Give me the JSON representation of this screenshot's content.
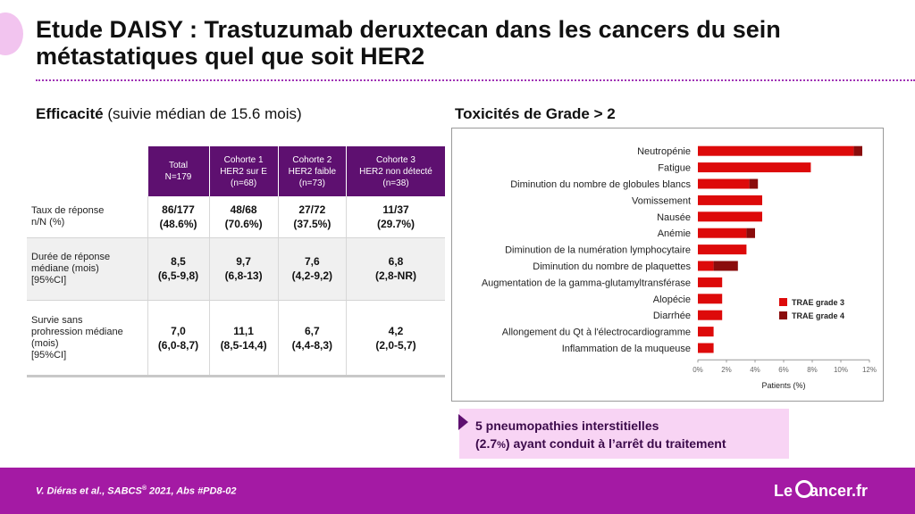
{
  "title": "Etude DAISY : Trastuzumab deruxtecan dans les cancers du sein métastatiques quel que soit HER2",
  "efficacy": {
    "heading_bold": "Efficacité",
    "heading_rest": "(suivie médian de 15.6 mois)",
    "columns": [
      {
        "line1": "Total",
        "line2": "N=179",
        "line3": ""
      },
      {
        "line1": "Cohorte 1",
        "line2": "HER2 sur E",
        "line3": "(n=68)"
      },
      {
        "line1": "Cohorte 2",
        "line2": "HER2 faible",
        "line3": "(n=73)"
      },
      {
        "line1": "Cohorte 3",
        "line2": "HER2 non détecté",
        "line3": "(n=38)"
      }
    ],
    "rows": [
      {
        "label": [
          "Taux de réponse",
          "n/N (%)"
        ],
        "values": [
          {
            "a": "86/177",
            "b": "(48.6%)"
          },
          {
            "a": "48/68",
            "b": "(70.6%)"
          },
          {
            "a": "27/72",
            "b": "(37.5%)"
          },
          {
            "a": "11/37",
            "b": "(29.7%)"
          }
        ]
      },
      {
        "label": [
          "Durée de réponse",
          "médiane (mois)",
          "[95%CI]"
        ],
        "values": [
          {
            "a": "8,5",
            "b": "(6,5-9,8)"
          },
          {
            "a": "9,7",
            "b": "(6,8-13)"
          },
          {
            "a": "7,6",
            "b": "(4,2-9,2)"
          },
          {
            "a": "6,8",
            "b": "(2,8-NR)"
          }
        ]
      },
      {
        "label": [
          "Survie sans",
          "prohression médiane",
          "(mois)",
          "[95%CI]"
        ],
        "values": [
          {
            "a": "7,0",
            "b": "(6,0-8,7)"
          },
          {
            "a": "11,1",
            "b": "(8,5-14,4)"
          },
          {
            "a": "6,7",
            "b": "(4,4-8,3)"
          },
          {
            "a": "4,2",
            "b": "(2,0-5,7)"
          }
        ]
      }
    ]
  },
  "toxicity": {
    "heading": "Toxicités de Grade > 2"
  },
  "chart_data": {
    "type": "bar",
    "orientation": "horizontal",
    "stacked": true,
    "categories": [
      "Neutropénie",
      "Fatigue",
      "Diminution du nombre de globules blancs",
      "Vomissement",
      "Nausée",
      "Anémie",
      "Diminution de la numération lymphocytaire",
      "Diminution du nombre de plaquettes",
      "Augmentation de la gamma-glutamyltransférase",
      "Alopécie",
      "Diarrhée",
      "Allongement du Qt à l'électrocardiogramme",
      "Inflammation de la muqueuse"
    ],
    "series": [
      {
        "name": "TRAE grade 3",
        "color": "#dd0a0a",
        "values": [
          10.9,
          7.9,
          3.6,
          4.5,
          4.5,
          3.4,
          3.4,
          1.1,
          1.7,
          1.7,
          1.7,
          1.1,
          1.1
        ]
      },
      {
        "name": "TRAE grade 4",
        "color": "#8a0c0c",
        "values": [
          0.6,
          0.0,
          0.6,
          0.0,
          0.0,
          0.6,
          0.0,
          1.7,
          0.0,
          0.0,
          0.0,
          0.0,
          0.0
        ]
      }
    ],
    "xlabel": "Patients (%)",
    "xlim": [
      0,
      12
    ],
    "xticks": [
      "0%",
      "2%",
      "4%",
      "6%",
      "8%",
      "10%",
      "12%"
    ],
    "legend_position": "lower-right",
    "grid": false
  },
  "callout": {
    "line1": "5 pneumopathies interstitielles",
    "line2_pre": "(2.7",
    "line2_pct": "%",
    "line2_post": ") ayant conduit à l’arrêt du traitement"
  },
  "footer": {
    "citation_pre": "V. Diéras  et al., SABCS",
    "citation_sup": "®",
    "citation_post": " 2021, Abs #PD8-02",
    "logo_le": "Le",
    "logo_rest": "ancer.fr"
  },
  "colors": {
    "accent_purple": "#5e1070",
    "footer_magenta": "#a41aa4",
    "callout_pink": "#f8d4f4"
  }
}
